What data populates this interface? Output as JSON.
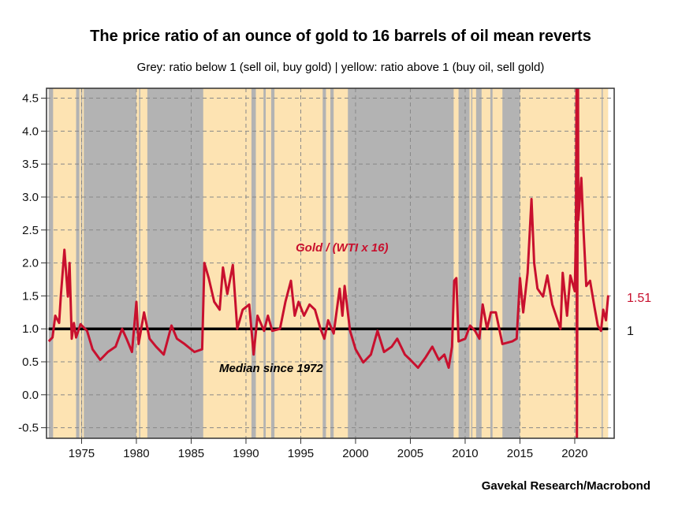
{
  "chart_data": {
    "type": "line",
    "title": "The price ratio of an ounce of gold to 16 barrels of oil mean reverts",
    "subtitle": "Grey: ratio below 1 (sell oil, buy gold) | yellow: ratio above 1 (buy oil, sell gold)",
    "source": "Gavekal Research/Macrobond",
    "xlim": [
      1971.8,
      2023.6
    ],
    "ylim": [
      -0.66,
      4.65
    ],
    "grid": true,
    "x_ticks": [
      1975,
      1980,
      1985,
      1990,
      1995,
      2000,
      2005,
      2010,
      2015,
      2020
    ],
    "y_ticks": [
      4.5,
      4.0,
      3.5,
      3.0,
      2.5,
      2.0,
      1.5,
      1.0,
      0.5,
      0.0,
      -0.5
    ],
    "y_tick_labels": [
      "4.5",
      "4.0",
      "3.5",
      "3.0",
      "2.5",
      "2.0",
      "1.5",
      "1.0",
      "0.5",
      "0.0",
      "-0.5"
    ],
    "colors": {
      "series": "#c8102e",
      "yellow": "#fde3b2",
      "grey": "#b3b3b3",
      "median": "#000000"
    },
    "annotations": {
      "series_label": "Gold / (WTI x 16)",
      "median_label": "Median since 1972",
      "last_value_label": "1.51",
      "median_value_label": "1"
    },
    "median": 1.0,
    "grey_periods": [
      [
        1972.0,
        1972.4
      ],
      [
        1974.5,
        1974.8
      ],
      [
        1974.95,
        1975.05
      ],
      [
        1975.2,
        1980.0
      ],
      [
        1980.25,
        1980.35
      ],
      [
        1981.0,
        1986.1
      ],
      [
        1990.5,
        1990.9
      ],
      [
        1991.6,
        1991.8
      ],
      [
        1992.3,
        1992.6
      ],
      [
        1997.0,
        1997.3
      ],
      [
        1997.7,
        1998.0
      ],
      [
        1999.3,
        2008.95
      ],
      [
        2009.4,
        2010.4
      ],
      [
        2010.55,
        2010.62
      ],
      [
        2011.0,
        2011.5
      ],
      [
        2012.3,
        2012.5
      ],
      [
        2013.4,
        2015.0
      ],
      [
        2022.45,
        2022.55
      ]
    ],
    "series": [
      {
        "name": "Gold / (WTI x 16)",
        "x": [
          1972.0,
          1972.35,
          1972.6,
          1972.95,
          1973.1,
          1973.43,
          1973.75,
          1973.9,
          1974.1,
          1974.3,
          1974.5,
          1974.9,
          1975.5,
          1976.0,
          1976.7,
          1977.4,
          1978.1,
          1978.7,
          1979.1,
          1979.6,
          1980.0,
          1980.2,
          1980.7,
          1981.2,
          1981.8,
          1982.5,
          1983.2,
          1983.7,
          1984.4,
          1985.3,
          1986.0,
          1986.2,
          1986.6,
          1987.1,
          1987.6,
          1987.9,
          1988.3,
          1988.8,
          1989.2,
          1989.7,
          1990.3,
          1990.7,
          1991.05,
          1991.65,
          1992.0,
          1992.4,
          1993.1,
          1993.6,
          1994.1,
          1994.45,
          1994.8,
          1995.3,
          1995.8,
          1996.3,
          1996.8,
          1997.15,
          1997.5,
          1998.0,
          1998.55,
          1998.8,
          1999.0,
          1999.5,
          2000.0,
          2000.7,
          2001.4,
          2002.0,
          2002.6,
          2003.3,
          2003.8,
          2004.5,
          2005.0,
          2005.7,
          2006.4,
          2007.0,
          2007.6,
          2008.1,
          2008.5,
          2008.8,
          2009.0,
          2009.2,
          2009.4,
          2010.0,
          2010.45,
          2010.9,
          2011.3,
          2011.6,
          2012.0,
          2012.35,
          2012.8,
          2013.4,
          2014.3,
          2014.7,
          2015.0,
          2015.3,
          2015.7,
          2016.05,
          2016.3,
          2016.6,
          2017.1,
          2017.5,
          2017.95,
          2018.7,
          2018.9,
          2019.3,
          2019.6,
          2020.0,
          2020.1,
          2020.17,
          2020.2,
          2020.3,
          2020.33,
          2020.6,
          2020.8,
          2021.05,
          2021.4,
          2021.8,
          2022.1,
          2022.4,
          2022.6,
          2022.85,
          2023.05
        ],
        "values": [
          0.81,
          0.87,
          1.2,
          1.09,
          1.49,
          2.2,
          1.49,
          2.0,
          0.85,
          1.09,
          0.87,
          1.07,
          0.97,
          0.69,
          0.53,
          0.65,
          0.73,
          1.0,
          0.85,
          0.65,
          1.41,
          0.77,
          1.25,
          0.85,
          0.73,
          0.61,
          1.05,
          0.85,
          0.77,
          0.65,
          0.69,
          2.0,
          1.77,
          1.41,
          1.29,
          1.93,
          1.53,
          1.97,
          1.0,
          1.29,
          1.37,
          0.61,
          1.2,
          0.97,
          1.2,
          0.97,
          1.0,
          1.41,
          1.73,
          1.2,
          1.41,
          1.2,
          1.37,
          1.29,
          1.0,
          0.85,
          1.13,
          0.93,
          1.61,
          1.2,
          1.65,
          0.97,
          0.69,
          0.49,
          0.61,
          0.97,
          0.65,
          0.73,
          0.85,
          0.61,
          0.53,
          0.41,
          0.57,
          0.73,
          0.53,
          0.61,
          0.41,
          0.73,
          1.73,
          1.77,
          0.81,
          0.85,
          1.05,
          0.97,
          0.85,
          1.37,
          1.0,
          1.25,
          1.25,
          0.77,
          0.81,
          0.85,
          1.77,
          1.25,
          1.85,
          2.97,
          2.0,
          1.61,
          1.49,
          1.81,
          1.37,
          1.0,
          1.85,
          1.2,
          1.81,
          1.57,
          2.41,
          4.8,
          -0.7,
          4.65,
          2.65,
          3.29,
          2.49,
          1.65,
          1.73,
          1.33,
          1.05,
          0.97,
          1.29,
          1.13,
          1.51
        ]
      }
    ]
  }
}
